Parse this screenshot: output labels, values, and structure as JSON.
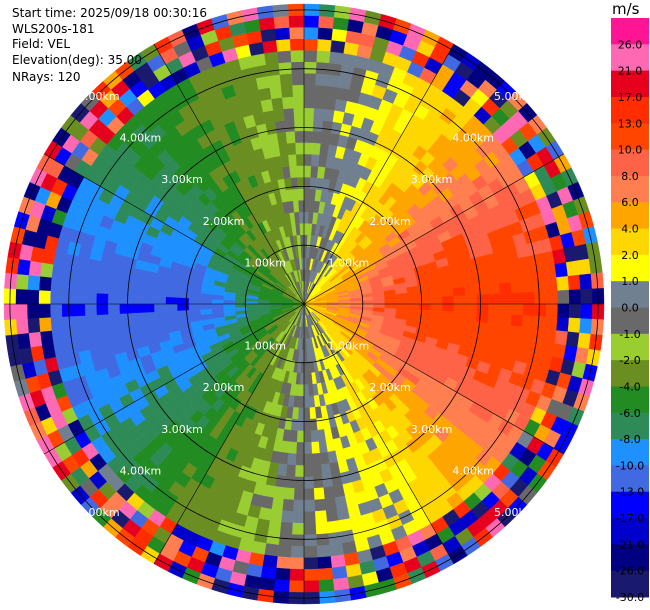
{
  "info": {
    "start_time": "Start time: 2025/09/18 00:30:16",
    "instrument": "WLS200s-181",
    "field": "Field: VEL",
    "elevation": "Elevation(deg): 35.00",
    "nrays": "NRays: 120"
  },
  "colorbar": {
    "unit": "m/s",
    "ticks": [
      "26.0",
      "21.0",
      "17.0",
      "13.0",
      "10.0",
      "8.0",
      "6.0",
      "4.0",
      "2.0",
      "1.0",
      "0.0",
      "-1.0",
      "-2.0",
      "-4.0",
      "-6.0",
      "-8.0",
      "-10.0",
      "-13.0",
      "-17.0",
      "-21.0",
      "-26.0",
      "-30.0"
    ],
    "colors": [
      "#ff1493",
      "#ff69b4",
      "#e6001e",
      "#ff2d00",
      "#ff4500",
      "#ff6347",
      "#ff7f50",
      "#ffa500",
      "#ffd700",
      "#ffff00",
      "#708090",
      "#696969",
      "#9acd32",
      "#6b8e23",
      "#228b22",
      "#2e8b57",
      "#1e90ff",
      "#4169e1",
      "#0000ff",
      "#0000cd",
      "#000080",
      "#191970"
    ]
  },
  "chart_data": {
    "type": "heatmap",
    "description_note": "",
    "range_unit": "km",
    "range_rings_km": [
      1.0,
      2.0,
      3.0,
      4.0,
      5.0
    ],
    "range_ring_labels": [
      "1.00km",
      "2.00km",
      "3.00km",
      "4.00km",
      "5.00km"
    ],
    "max_range_km": 5.1,
    "n_rays": 120,
    "azimuth_spokes_deg": [
      0,
      30,
      60,
      90,
      120,
      150,
      180,
      210,
      240,
      270,
      300,
      330
    ],
    "velocity_by_azimuth_sector": [
      {
        "azimuth_deg": 0,
        "velocity_ms": -1.0
      },
      {
        "azimuth_deg": 30,
        "velocity_ms": 2.0
      },
      {
        "azimuth_deg": 60,
        "velocity_ms": 8.0
      },
      {
        "azimuth_deg": 90,
        "velocity_ms": 13.0
      },
      {
        "azimuth_deg": 120,
        "velocity_ms": 8.0
      },
      {
        "azimuth_deg": 150,
        "velocity_ms": 2.0
      },
      {
        "azimuth_deg": 180,
        "velocity_ms": 0.0
      },
      {
        "azimuth_deg": 210,
        "velocity_ms": -4.0
      },
      {
        "azimuth_deg": 240,
        "velocity_ms": -8.0
      },
      {
        "azimuth_deg": 270,
        "velocity_ms": -13.0
      },
      {
        "azimuth_deg": 300,
        "velocity_ms": -8.0
      },
      {
        "azimuth_deg": 330,
        "velocity_ms": -4.0
      }
    ],
    "noise_beyond_km": 4.2,
    "vmin": -30.0,
    "vmax": 26.0
  }
}
